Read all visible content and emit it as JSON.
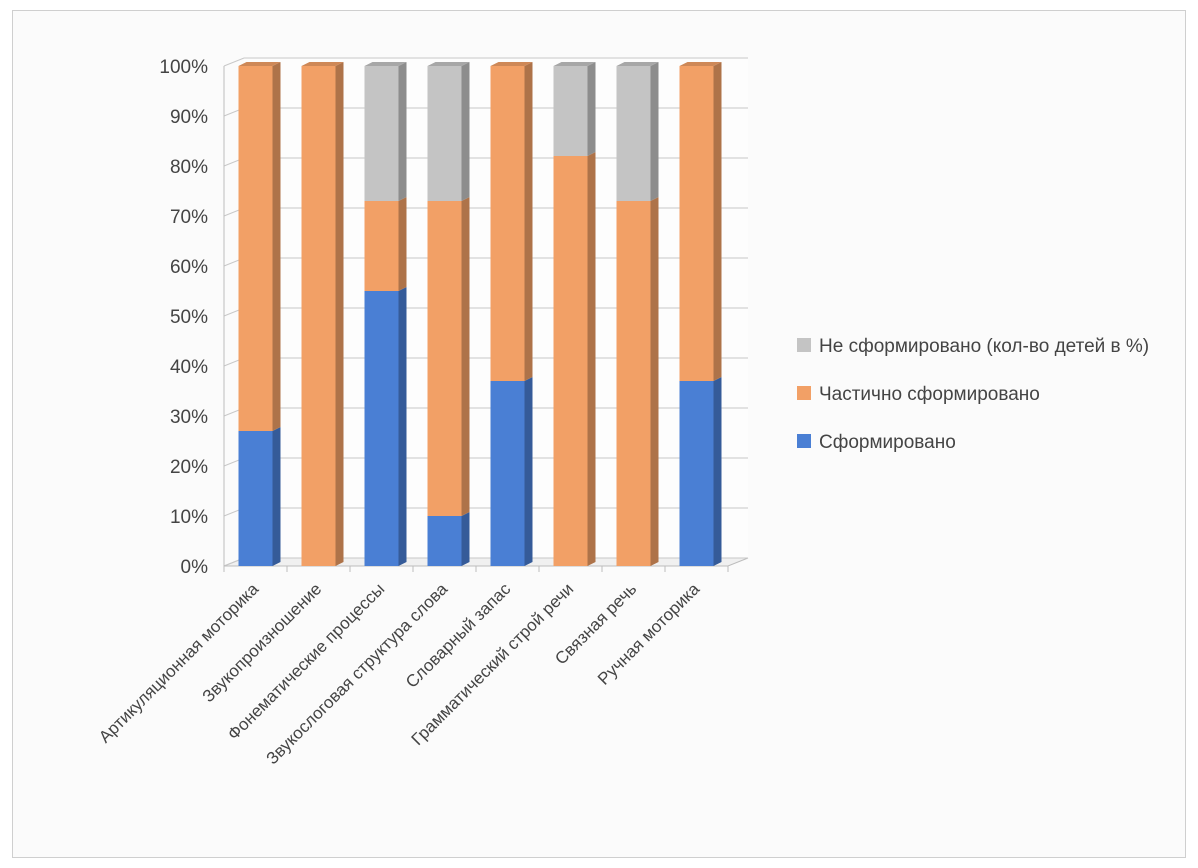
{
  "chart_data": {
    "type": "bar",
    "stacked": true,
    "three_d": true,
    "categories": [
      "Артикуляционная моторика",
      "Звукопроизношение",
      "Фонематические процессы",
      "Звукослоговая структура слова",
      "Словарный запас",
      "Грамматический строй речи",
      "Связная речь",
      "Ручная моторика"
    ],
    "series": [
      {
        "name": "Сформировано",
        "color": "#4a7fd4",
        "values": [
          27,
          0,
          55,
          10,
          37,
          0,
          0,
          37
        ]
      },
      {
        "name": "Частично сформировано",
        "color": "#f2a066",
        "values": [
          73,
          100,
          18,
          63,
          63,
          82,
          73,
          63
        ]
      },
      {
        "name": "Не сформировано (кол-во детей в %)",
        "color": "#c4c4c4",
        "values": [
          0,
          0,
          27,
          27,
          0,
          18,
          27,
          0
        ]
      }
    ],
    "y_ticks": [
      "0%",
      "10%",
      "20%",
      "30%",
      "40%",
      "50%",
      "60%",
      "70%",
      "80%",
      "90%",
      "100%"
    ],
    "ylim": [
      0,
      100
    ],
    "grid": true,
    "legend_position": "right",
    "legend_order": [
      "Не сформировано (кол-во детей в %)",
      "Частично сформировано",
      "Сформировано"
    ]
  }
}
